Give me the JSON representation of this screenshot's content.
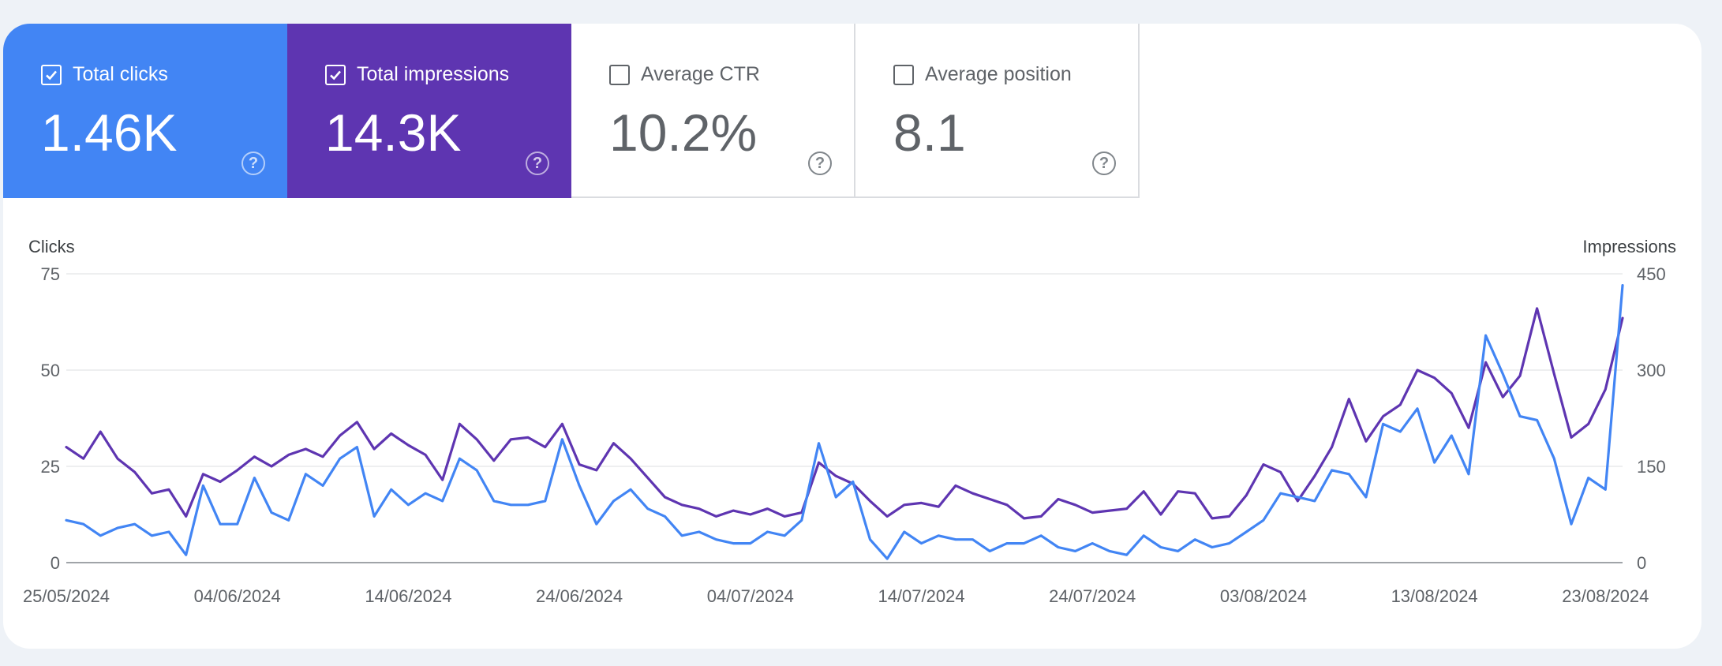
{
  "tiles": [
    {
      "key": "clicks",
      "label": "Total clicks",
      "value": "1.46K",
      "checked": true,
      "color": "#4285f4"
    },
    {
      "key": "impr",
      "label": "Total impressions",
      "value": "14.3K",
      "checked": true,
      "color": "#5e35b1"
    },
    {
      "key": "ctr",
      "label": "Average CTR",
      "value": "10.2%",
      "checked": false
    },
    {
      "key": "pos",
      "label": "Average position",
      "value": "8.1",
      "checked": false
    }
  ],
  "chart_data": {
    "type": "line",
    "left_axis": {
      "title": "Clicks",
      "ticks": [
        0,
        25,
        50,
        75
      ],
      "ylim": [
        0,
        75
      ]
    },
    "right_axis": {
      "title": "Impressions",
      "ticks": [
        0,
        150,
        300,
        450
      ],
      "ylim": [
        0,
        450
      ]
    },
    "x_tick_labels": [
      "25/05/2024",
      "04/06/2024",
      "14/06/2024",
      "24/06/2024",
      "04/07/2024",
      "14/07/2024",
      "24/07/2024",
      "03/08/2024",
      "13/08/2024",
      "23/08/2024"
    ],
    "x_start": "25/05/2024",
    "x_end": "25/08/2024",
    "grid": true,
    "series": [
      {
        "name": "Total clicks",
        "axis": "left",
        "color": "#4285f4",
        "values": [
          11,
          10,
          7,
          9,
          10,
          7,
          8,
          2,
          20,
          10,
          10,
          22,
          13,
          11,
          23,
          20,
          27,
          30,
          12,
          19,
          15,
          18,
          16,
          27,
          24,
          16,
          15,
          15,
          16,
          32,
          20,
          10,
          16,
          19,
          14,
          12,
          7,
          8,
          6,
          5,
          5,
          8,
          7,
          11,
          31,
          17,
          21,
          6,
          1,
          8,
          5,
          7,
          6,
          6,
          3,
          5,
          5,
          7,
          4,
          3,
          5,
          3,
          2,
          7,
          4,
          3,
          6,
          4,
          5,
          8,
          11,
          18,
          17,
          16,
          24,
          23,
          17,
          36,
          34,
          40,
          26,
          33,
          23,
          59,
          49,
          38,
          37,
          27,
          10,
          22,
          19,
          72
        ]
      },
      {
        "name": "Total impressions",
        "axis": "right",
        "color": "#5e35b1",
        "values": [
          180,
          162,
          204,
          162,
          141,
          108,
          114,
          72,
          138,
          126,
          144,
          165,
          150,
          168,
          177,
          165,
          198,
          219,
          177,
          201,
          183,
          168,
          129,
          216,
          192,
          159,
          192,
          195,
          180,
          216,
          153,
          144,
          186,
          162,
          132,
          102,
          90,
          84,
          72,
          81,
          75,
          84,
          72,
          78,
          156,
          135,
          123,
          96,
          72,
          90,
          93,
          87,
          120,
          108,
          99,
          90,
          69,
          72,
          99,
          90,
          78,
          81,
          84,
          111,
          75,
          111,
          108,
          69,
          72,
          105,
          153,
          141,
          96,
          135,
          180,
          255,
          189,
          228,
          246,
          300,
          288,
          264,
          210,
          312,
          258,
          291,
          396,
          294,
          195,
          216,
          270,
          381
        ]
      }
    ]
  }
}
